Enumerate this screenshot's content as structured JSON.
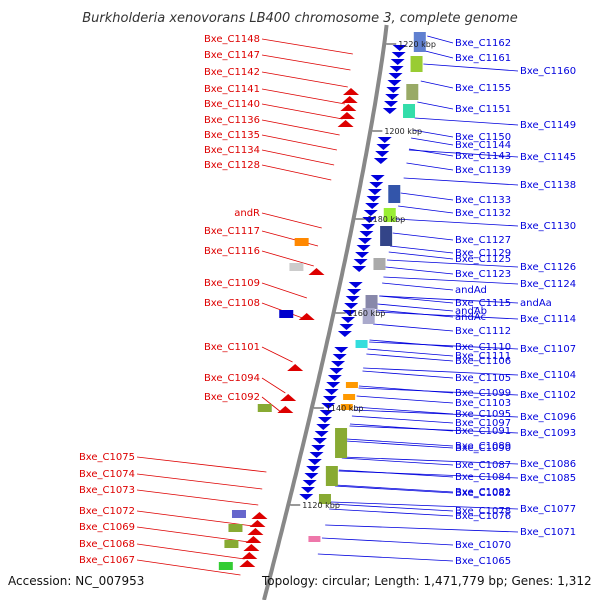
{
  "title": "Burkholderia xenovorans LB400 chromosome 3, complete genome",
  "accession": "Accession: NC_007953",
  "topology": "Topology: circular; Length: 1,471,779 bp; Genes: 1,312",
  "colors": {
    "left": "#dd0000",
    "right": "#0000dd",
    "backbone": "#888888",
    "tick": "#2a8a2a"
  },
  "kbp_ticks": [
    "1220 kbp",
    "1200 kbp",
    "1180 kbp",
    "1160 kbp",
    "1140 kbp",
    "1120 kbp"
  ],
  "left_labels": [
    "Bxe_C1148",
    "Bxe_C1147",
    "Bxe_C1142",
    "Bxe_C1141",
    "Bxe_C1140",
    "Bxe_C1136",
    "Bxe_C1135",
    "Bxe_C1134",
    "Bxe_C1128",
    "andR",
    "Bxe_C1117",
    "Bxe_C1116",
    "Bxe_C1109",
    "Bxe_C1108",
    "Bxe_C1101",
    "Bxe_C1094",
    "Bxe_C1092",
    "Bxe_C1075",
    "Bxe_C1074",
    "Bxe_C1073",
    "Bxe_C1072",
    "Bxe_C1069",
    "Bxe_C1068",
    "Bxe_C1067"
  ],
  "right_labels": [
    "Bxe_C1162",
    "Bxe_C1161",
    "Bxe_C1160",
    "Bxe_C1155",
    "Bxe_C1151",
    "Bxe_C1149",
    "Bxe_C1150",
    "Bxe_C1144",
    "Bxe_C1145",
    "Bxe_C1143",
    "Bxe_C1139",
    "Bxe_C1138",
    "Bxe_C1133",
    "Bxe_C1132",
    "Bxe_C1130",
    "Bxe_C1127",
    "Bxe_C1129",
    "Bxe_C1126",
    "Bxe_C1125",
    "Bxe_C1123",
    "Bxe_C1124",
    "andAd",
    "Bxe_C1115",
    "andAa",
    "andAb",
    "andAc",
    "Bxe_C1114",
    "Bxe_C1112",
    "Bxe_C1110",
    "Bxe_C1107",
    "Bxe_C1111",
    "Bxe_C1106",
    "Bxe_C1104",
    "Bxe_C1105",
    "Bxe_C1099",
    "Bxe_C1102",
    "Bxe_C1103",
    "Bxe_C1095",
    "Bxe_C1096",
    "Bxe_C1097",
    "Bxe_C1091",
    "Bxe_C1093",
    "Bxe_C1089",
    "Bxe_C1090",
    "Bxe_C1086",
    "Bxe_C1087",
    "Bxe_C1084",
    "Bxe_C1085",
    "Bxe_C1081",
    "Bxe_C1082",
    "Bxe_C1077",
    "Bxe_C1078",
    "Bxe_C1076",
    "Bxe_C1071",
    "Bxe_C1070",
    "Bxe_C1065"
  ]
}
